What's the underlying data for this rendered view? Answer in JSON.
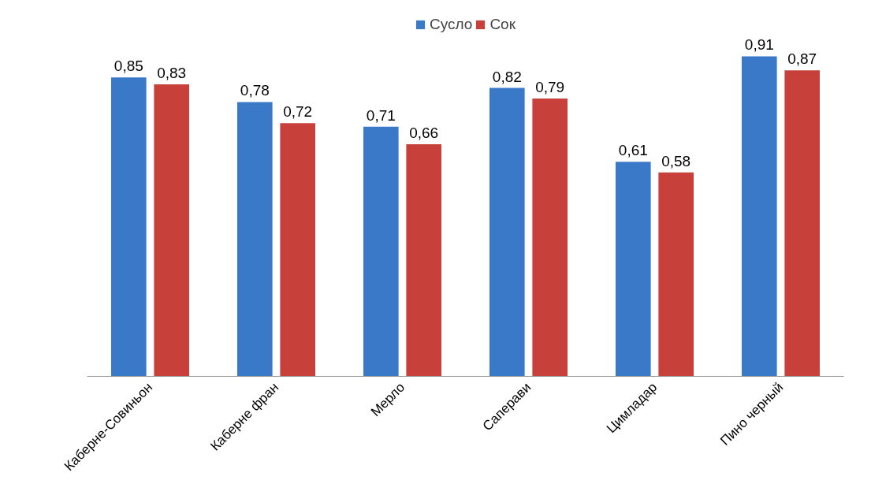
{
  "chart_data": {
    "type": "bar",
    "categories": [
      "Каберне-Совиньон",
      "Каберне фран",
      "Мерло",
      "Саперави",
      "Цимладар",
      "Пино черный"
    ],
    "series": [
      {
        "name": "Сусло",
        "color": "#3a78c8",
        "values": [
          0.85,
          0.78,
          0.71,
          0.82,
          0.61,
          0.91
        ],
        "value_labels": [
          "0,85",
          "0,78",
          "0,71",
          "0,82",
          "0,61",
          "0,91"
        ]
      },
      {
        "name": "Сок",
        "color": "#c8403a",
        "values": [
          0.83,
          0.72,
          0.66,
          0.79,
          0.58,
          0.87
        ],
        "value_labels": [
          "0,83",
          "0,72",
          "0,66",
          "0,79",
          "0,58",
          "0,87"
        ]
      }
    ],
    "tick_labels": "x",
    "legend": "top"
  }
}
